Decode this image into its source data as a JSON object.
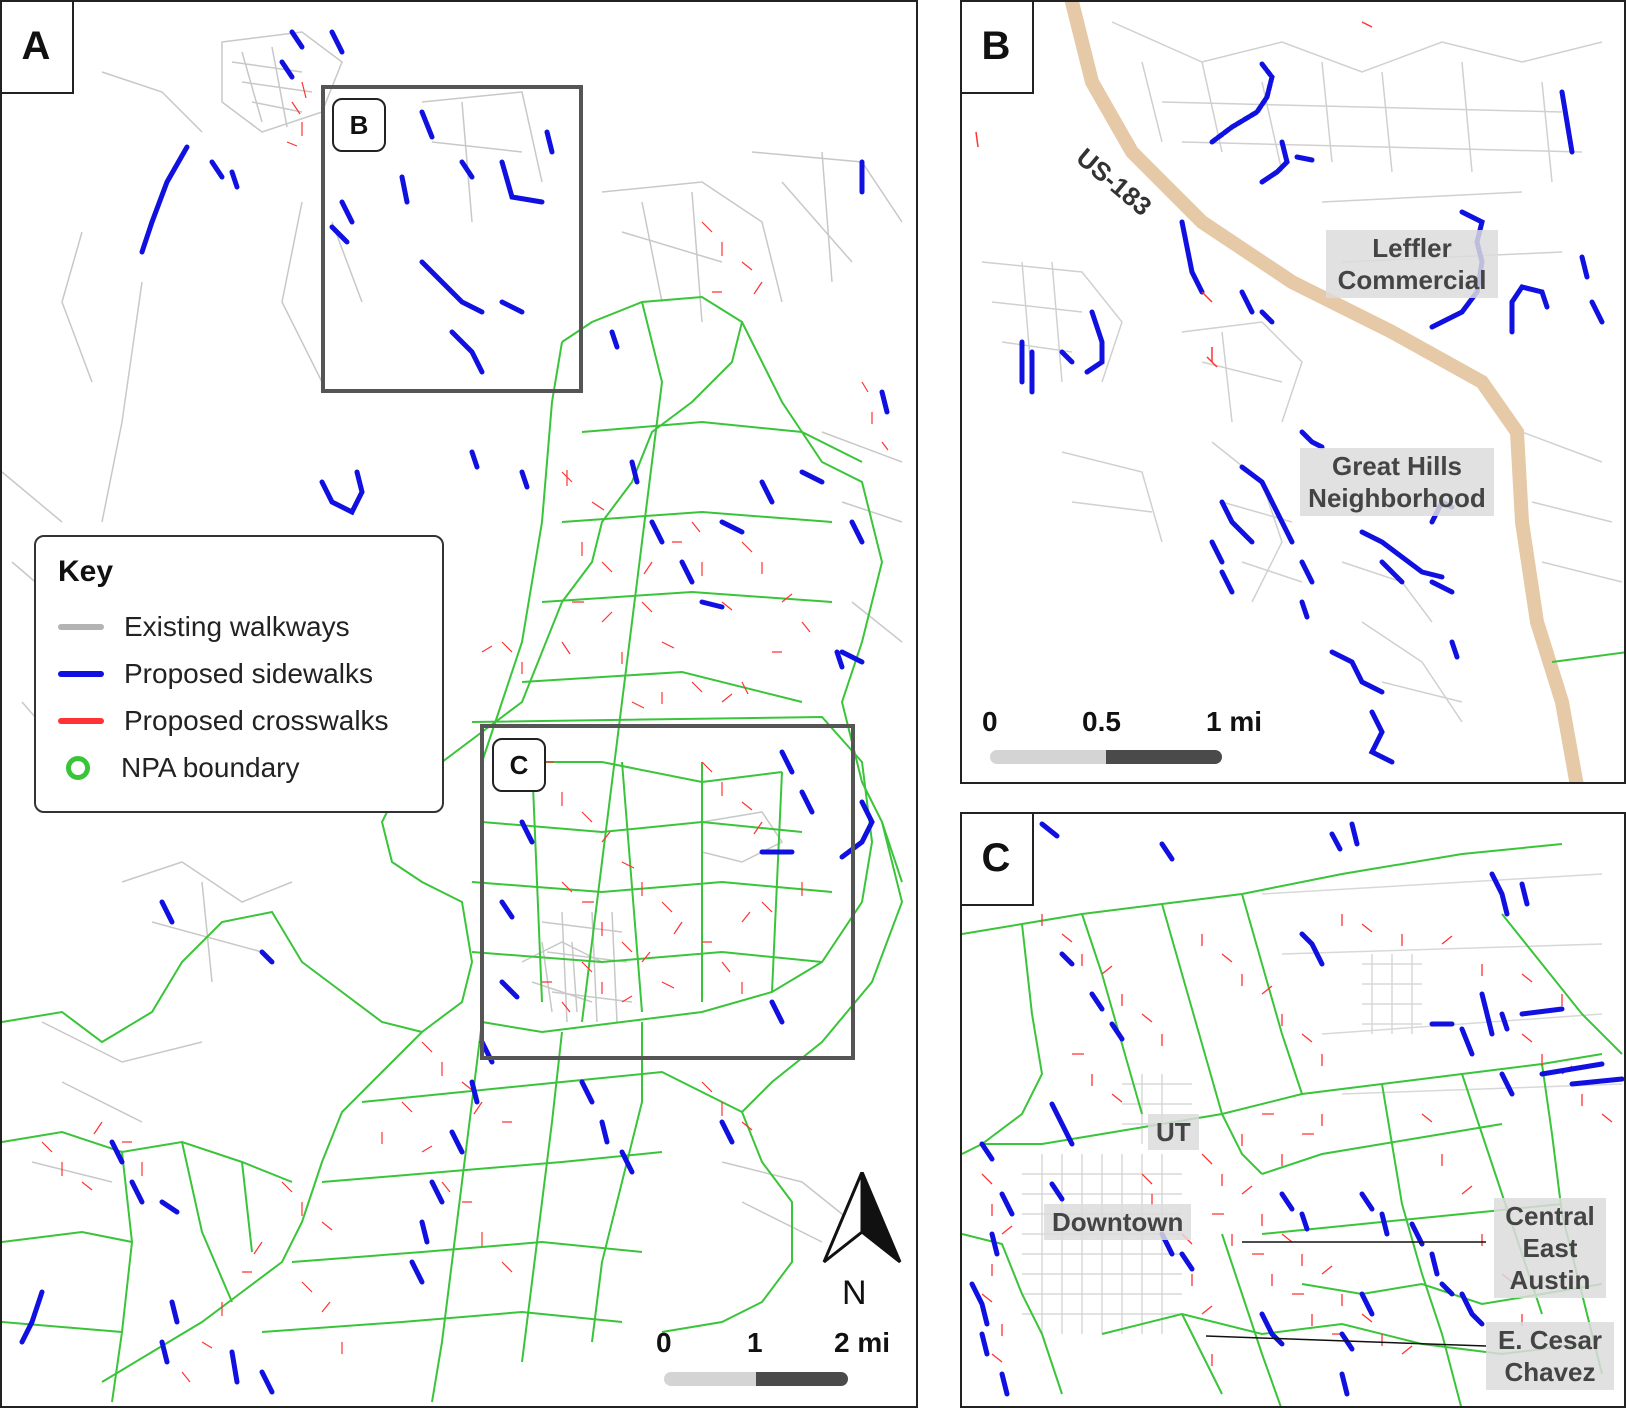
{
  "panels": {
    "a": {
      "tag": "A"
    },
    "b": {
      "tag": "B"
    },
    "c": {
      "tag": "C"
    }
  },
  "insets": {
    "b_label": "B",
    "c_label": "C"
  },
  "key": {
    "title": "Key",
    "items": [
      {
        "label": "Existing walkways",
        "color": "#b3b3b3"
      },
      {
        "label": "Proposed sidewalks",
        "color": "#1010e0"
      },
      {
        "label": "Proposed crosswalks",
        "color": "#ff3333"
      },
      {
        "label": "NPA boundary",
        "color": "#3ac43a"
      }
    ]
  },
  "scale_a": {
    "ticks": [
      "0",
      "1",
      "2 mi"
    ]
  },
  "scale_b": {
    "ticks": [
      "0",
      "0.5",
      "1 mi"
    ]
  },
  "north_label": "N",
  "panel_b_labels": {
    "highway": "US-183",
    "leffler": [
      "Leffler",
      "Commercial"
    ],
    "great_hills": [
      "Great Hills",
      "Neighborhood"
    ]
  },
  "panel_c_labels": {
    "ut": "UT",
    "downtown": "Downtown",
    "central_east": [
      "Central",
      "East",
      "Austin"
    ],
    "cesar_chavez": [
      "E. Cesar",
      "Chavez"
    ]
  }
}
